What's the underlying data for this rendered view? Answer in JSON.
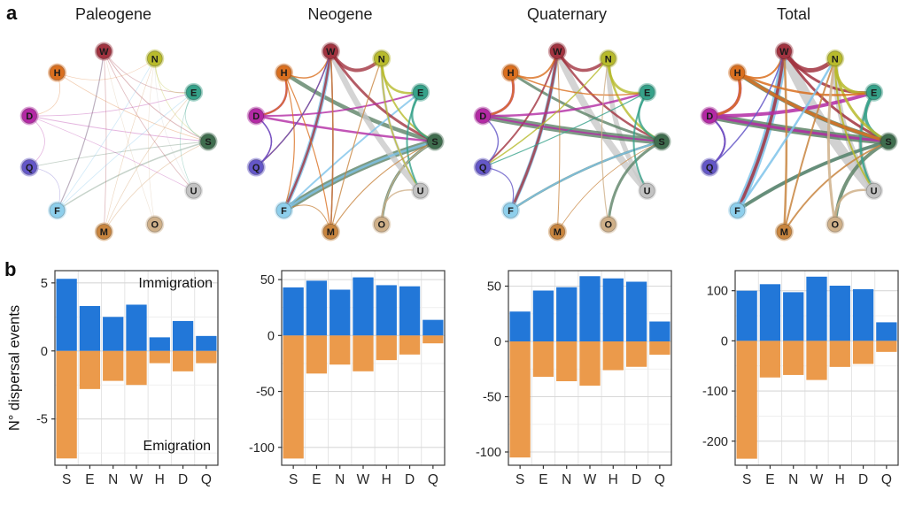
{
  "panel_labels": {
    "a": "a",
    "b": "b"
  },
  "colors": {
    "immigration_bar": "#2277d8",
    "emigration_bar": "#eb9a4b",
    "plot_border": "#3c3c3c",
    "grid_major": "#d8d8d8",
    "grid_minor": "#ececec",
    "tick_text": "#262626"
  },
  "network": {
    "node_order": [
      "S",
      "E",
      "N",
      "W",
      "H",
      "D",
      "Q",
      "F",
      "M",
      "O",
      "U"
    ],
    "node_colors": {
      "S": "#3f6d4e",
      "E": "#36a189",
      "N": "#b7ba2c",
      "W": "#a13340",
      "H": "#d96f1f",
      "D": "#b32aa4",
      "Q": "#6457c7",
      "F": "#8ecfec",
      "M": "#c8853f",
      "O": "#cfb089",
      "U": "#c2c2c2"
    },
    "edge_color_overrides": {
      "S": "#5d8266",
      "U": "#c9c9c9",
      "F": "#7ec3ea"
    },
    "panels": [
      {
        "title": "Paleogene",
        "edge_opacity": 0.35,
        "edges": [
          [
            "F",
            "W",
            1.4
          ],
          [
            "S",
            "F",
            1.5
          ],
          [
            "S",
            "Q",
            0.9
          ],
          [
            "D",
            "S",
            1.0
          ],
          [
            "W",
            "U",
            0.8
          ],
          [
            "W",
            "M",
            0.8
          ],
          [
            "W",
            "E",
            0.8
          ],
          [
            "W",
            "S",
            1.0
          ],
          [
            "N",
            "E",
            0.8
          ],
          [
            "N",
            "S",
            0.7
          ],
          [
            "E",
            "S",
            0.9
          ],
          [
            "E",
            "U",
            0.7
          ],
          [
            "H",
            "S",
            0.8
          ],
          [
            "H",
            "D",
            0.8
          ],
          [
            "D",
            "E",
            0.8
          ],
          [
            "D",
            "Q",
            0.8
          ],
          [
            "Q",
            "F",
            0.7
          ],
          [
            "F",
            "E",
            0.9
          ],
          [
            "M",
            "S",
            0.8
          ],
          [
            "M",
            "E",
            0.7
          ],
          [
            "O",
            "W",
            0.6
          ],
          [
            "O",
            "N",
            0.6
          ],
          [
            "U",
            "N",
            0.7
          ],
          [
            "W",
            "F",
            1.0
          ],
          [
            "D",
            "U",
            0.7
          ],
          [
            "H",
            "N",
            0.6
          ],
          [
            "M",
            "N",
            0.6
          ],
          [
            "F",
            "N",
            0.8
          ]
        ]
      },
      {
        "title": "Neogene",
        "edge_opacity": 0.8,
        "edges": [
          [
            "S",
            "F",
            7
          ],
          [
            "S",
            "H",
            4.5
          ],
          [
            "S",
            "O",
            3
          ],
          [
            "U",
            "W",
            6.5
          ],
          [
            "U",
            "N",
            3
          ],
          [
            "F",
            "W",
            5
          ],
          [
            "F",
            "S",
            2.5
          ],
          [
            "F",
            "E",
            2
          ],
          [
            "W",
            "N",
            4
          ],
          [
            "W",
            "S",
            3
          ],
          [
            "W",
            "F",
            2.5
          ],
          [
            "W",
            "M",
            1.5
          ],
          [
            "W",
            "Q",
            1.5
          ],
          [
            "D",
            "H",
            2.5
          ],
          [
            "D",
            "S",
            2.5
          ],
          [
            "D",
            "E",
            2
          ],
          [
            "D",
            "Q",
            1.5
          ],
          [
            "H",
            "D",
            2
          ],
          [
            "H",
            "W",
            1.5
          ],
          [
            "H",
            "M",
            1.2
          ],
          [
            "N",
            "E",
            2.5
          ],
          [
            "N",
            "S",
            2
          ],
          [
            "N",
            "U",
            1.5
          ],
          [
            "E",
            "S",
            2.5
          ],
          [
            "E",
            "U",
            2
          ],
          [
            "M",
            "W",
            1.5
          ],
          [
            "M",
            "N",
            1.2
          ],
          [
            "M",
            "S",
            1.2
          ],
          [
            "O",
            "U",
            1.5
          ],
          [
            "O",
            "S",
            1.2
          ],
          [
            "Q",
            "D",
            1.5
          ],
          [
            "Q",
            "W",
            1.2
          ],
          [
            "H",
            "F",
            1.2
          ],
          [
            "M",
            "F",
            1
          ]
        ]
      },
      {
        "title": "Quaternary",
        "edge_opacity": 0.8,
        "edges": [
          [
            "U",
            "W",
            8
          ],
          [
            "U",
            "N",
            5.5
          ],
          [
            "S",
            "D",
            7.5
          ],
          [
            "S",
            "H",
            3
          ],
          [
            "S",
            "F",
            2.5
          ],
          [
            "S",
            "O",
            3
          ],
          [
            "F",
            "W",
            4.5
          ],
          [
            "F",
            "S",
            2
          ],
          [
            "W",
            "N",
            3.5
          ],
          [
            "W",
            "F",
            3
          ],
          [
            "W",
            "S",
            2.5
          ],
          [
            "W",
            "Q",
            2
          ],
          [
            "D",
            "H",
            3
          ],
          [
            "D",
            "E",
            2.5
          ],
          [
            "D",
            "S",
            2
          ],
          [
            "N",
            "E",
            3
          ],
          [
            "N",
            "S",
            2.5
          ],
          [
            "E",
            "S",
            2.5
          ],
          [
            "E",
            "U",
            2
          ],
          [
            "H",
            "D",
            2.5
          ],
          [
            "H",
            "W",
            2
          ],
          [
            "H",
            "E",
            1.5
          ],
          [
            "Q",
            "D",
            1.5
          ],
          [
            "Q",
            "F",
            1.2
          ],
          [
            "O",
            "N",
            1.2
          ],
          [
            "M",
            "W",
            1
          ],
          [
            "M",
            "S",
            0.8
          ],
          [
            "N",
            "Q",
            1.5
          ],
          [
            "E",
            "Q",
            1.2
          ]
        ]
      },
      {
        "title": "Total",
        "edge_opacity": 0.85,
        "edges": [
          [
            "U",
            "W",
            12
          ],
          [
            "U",
            "N",
            7
          ],
          [
            "U",
            "E",
            5
          ],
          [
            "F",
            "W",
            8
          ],
          [
            "F",
            "S",
            3
          ],
          [
            "S",
            "D",
            8
          ],
          [
            "S",
            "H",
            5
          ],
          [
            "S",
            "F",
            4
          ],
          [
            "S",
            "O",
            4
          ],
          [
            "W",
            "N",
            5
          ],
          [
            "W",
            "F",
            3.5
          ],
          [
            "W",
            "S",
            3
          ],
          [
            "W",
            "E",
            3
          ],
          [
            "D",
            "E",
            4
          ],
          [
            "D",
            "H",
            3.5
          ],
          [
            "D",
            "S",
            3
          ],
          [
            "D",
            "Q",
            2
          ],
          [
            "E",
            "S",
            3.5
          ],
          [
            "E",
            "U",
            2.5
          ],
          [
            "N",
            "E",
            3.5
          ],
          [
            "N",
            "S",
            3
          ],
          [
            "N",
            "U",
            2
          ],
          [
            "H",
            "S",
            3.5
          ],
          [
            "H",
            "D",
            3
          ],
          [
            "H",
            "E",
            2.5
          ],
          [
            "H",
            "W",
            2
          ],
          [
            "M",
            "W",
            2.5
          ],
          [
            "M",
            "N",
            2
          ],
          [
            "M",
            "S",
            2
          ],
          [
            "O",
            "N",
            3
          ],
          [
            "O",
            "U",
            2.5
          ],
          [
            "Q",
            "D",
            2
          ],
          [
            "Q",
            "W",
            1.5
          ],
          [
            "F",
            "N",
            2.5
          ]
        ]
      }
    ]
  },
  "chart_meta": {
    "ylabel": "N° dispersal events",
    "immigration_label": "Immigration",
    "emigration_label": "Emigration"
  },
  "chart_data": [
    {
      "type": "bar",
      "title": "Paleogene",
      "categories": [
        "S",
        "E",
        "N",
        "W",
        "H",
        "D",
        "Q"
      ],
      "series": [
        {
          "name": "Immigration",
          "color": "#2277d8",
          "values": [
            5.3,
            3.3,
            2.5,
            3.4,
            1.0,
            2.2,
            1.1
          ]
        },
        {
          "name": "Emigration",
          "color": "#eb9a4b",
          "values": [
            -7.9,
            -2.8,
            -2.2,
            -2.5,
            -0.9,
            -1.5,
            -0.9
          ]
        }
      ],
      "ylim": [
        -8.4,
        5.9
      ],
      "yticks": [
        5,
        0,
        -5
      ],
      "yticks_minor": [
        2.5,
        -2.5,
        -7.5
      ],
      "grid": true,
      "annotations": {
        "top": "Immigration",
        "bottom": "Emigration"
      }
    },
    {
      "type": "bar",
      "title": "Neogene",
      "categories": [
        "S",
        "E",
        "N",
        "W",
        "H",
        "D",
        "Q"
      ],
      "series": [
        {
          "name": "Immigration",
          "color": "#2277d8",
          "values": [
            43,
            49,
            41,
            52,
            45,
            44,
            14
          ]
        },
        {
          "name": "Emigration",
          "color": "#eb9a4b",
          "values": [
            -110,
            -34,
            -26,
            -32,
            -22,
            -17,
            -7
          ]
        }
      ],
      "ylim": [
        -116,
        58
      ],
      "yticks": [
        50,
        0,
        -50,
        -100
      ],
      "yticks_minor": [
        25,
        -25,
        -75
      ],
      "grid": true
    },
    {
      "type": "bar",
      "title": "Quaternary",
      "categories": [
        "S",
        "E",
        "N",
        "W",
        "H",
        "D",
        "Q"
      ],
      "series": [
        {
          "name": "Immigration",
          "color": "#2277d8",
          "values": [
            27,
            46,
            49,
            59,
            57,
            54,
            18
          ]
        },
        {
          "name": "Emigration",
          "color": "#eb9a4b",
          "values": [
            -105,
            -32,
            -36,
            -40,
            -26,
            -23,
            -12
          ]
        }
      ],
      "ylim": [
        -112,
        64
      ],
      "yticks": [
        50,
        0,
        -50,
        -100
      ],
      "yticks_minor": [
        25,
        -25,
        -75
      ],
      "grid": true
    },
    {
      "type": "bar",
      "title": "Total",
      "categories": [
        "S",
        "E",
        "N",
        "W",
        "H",
        "D",
        "Q"
      ],
      "series": [
        {
          "name": "Immigration",
          "color": "#2277d8",
          "values": [
            100,
            113,
            97,
            128,
            110,
            103,
            37
          ]
        },
        {
          "name": "Emigration",
          "color": "#eb9a4b",
          "values": [
            -235,
            -73,
            -68,
            -78,
            -52,
            -46,
            -22
          ]
        }
      ],
      "ylim": [
        -248,
        140
      ],
      "yticks": [
        100,
        0,
        -100,
        -200
      ],
      "yticks_minor": [
        50,
        -50,
        -150
      ],
      "grid": true
    }
  ]
}
